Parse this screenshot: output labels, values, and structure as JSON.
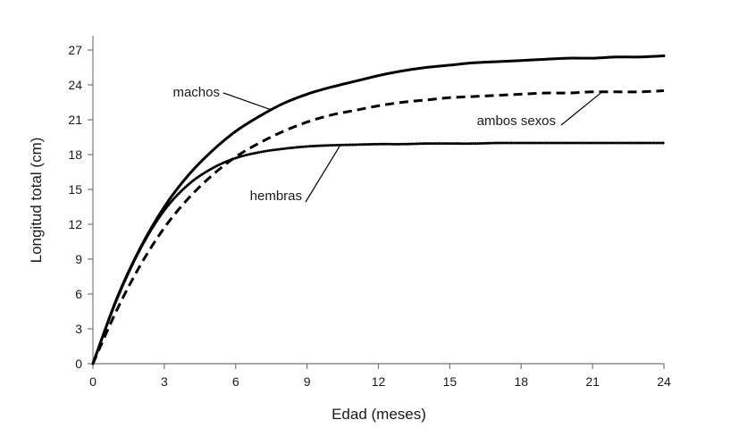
{
  "chart_data": {
    "type": "line",
    "title": "",
    "xlabel": "Edad (meses)",
    "ylabel": "Longitud total (cm)",
    "xlim": [
      0,
      24
    ],
    "ylim": [
      0,
      27
    ],
    "xticks": [
      0,
      3,
      6,
      9,
      12,
      15,
      18,
      21,
      24
    ],
    "yticks": [
      0,
      3,
      6,
      9,
      12,
      15,
      18,
      21,
      24,
      27
    ],
    "grid": false,
    "legend": "none",
    "x": [
      0,
      1,
      2,
      3,
      4,
      5,
      6,
      7,
      8,
      9,
      10,
      11,
      12,
      13,
      14,
      15,
      16,
      17,
      18,
      19,
      20,
      21,
      22,
      23,
      24
    ],
    "series": [
      {
        "name": "machos",
        "style": "solid",
        "color": "#000000",
        "values": [
          0,
          5.6,
          10.0,
          13.5,
          16.2,
          18.3,
          20.0,
          21.3,
          22.4,
          23.2,
          23.8,
          24.3,
          24.8,
          25.2,
          25.5,
          25.7,
          25.9,
          26.0,
          26.1,
          26.2,
          26.3,
          26.3,
          26.4,
          26.4,
          26.5
        ]
      },
      {
        "name": "ambos sexos",
        "style": "dashed",
        "color": "#000000",
        "values": [
          0,
          4.6,
          8.5,
          11.7,
          14.2,
          16.2,
          17.8,
          19.0,
          20.0,
          20.8,
          21.4,
          21.8,
          22.2,
          22.5,
          22.7,
          22.9,
          23.0,
          23.1,
          23.2,
          23.3,
          23.3,
          23.4,
          23.4,
          23.4,
          23.5
        ]
      },
      {
        "name": "hembras",
        "style": "dotted",
        "color": "#000000",
        "values": [
          0,
          5.5,
          9.9,
          13.2,
          15.4,
          16.8,
          17.7,
          18.2,
          18.5,
          18.7,
          18.8,
          18.85,
          18.9,
          18.9,
          18.95,
          18.95,
          18.95,
          19.0,
          19.0,
          19.0,
          19.0,
          19.0,
          19.0,
          19.0,
          19.0
        ]
      }
    ],
    "annotations": [
      {
        "text": "machos",
        "series": "machos",
        "at_x": 7.5
      },
      {
        "text": "ambos sexos",
        "series": "ambos sexos",
        "at_x": 21.4
      },
      {
        "text": "hembras",
        "series": "hembras",
        "at_x": 10.4
      }
    ]
  }
}
